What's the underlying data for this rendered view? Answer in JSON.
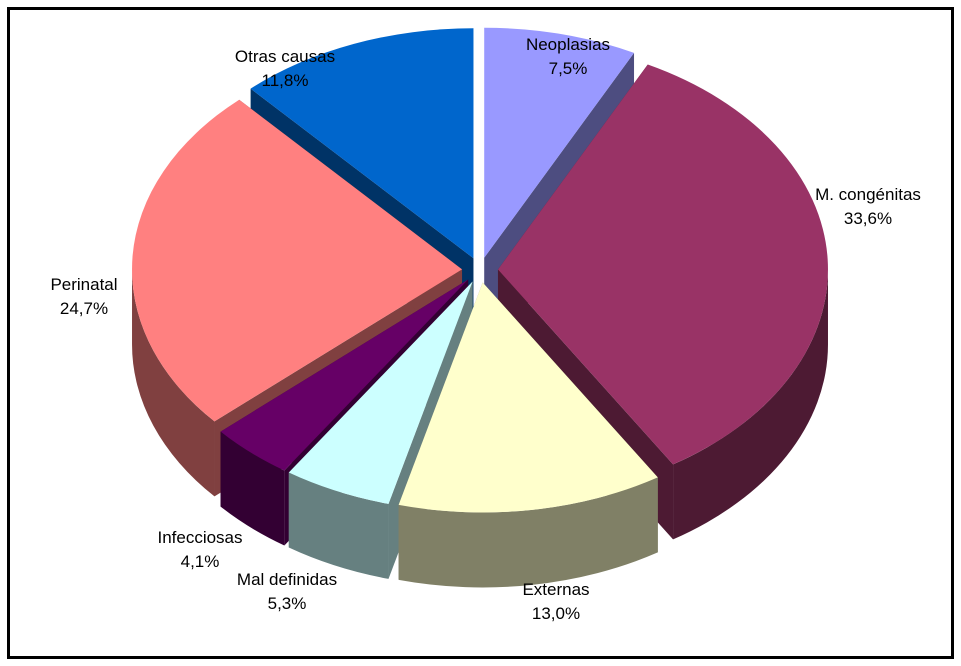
{
  "chart_data": {
    "type": "pie",
    "style": "3d-exploded",
    "title": "",
    "slices": [
      {
        "label": "Neoplasias",
        "value": 7.5,
        "display": "7,5%",
        "top_color": "#9999FF",
        "side_color": "#4D4D80"
      },
      {
        "label": "M. congénitas",
        "value": 33.6,
        "display": "33,6%",
        "top_color": "#993366",
        "side_color": "#4D1A33"
      },
      {
        "label": "Externas",
        "value": 13.0,
        "display": "13,0%",
        "top_color": "#FFFFCC",
        "side_color": "#808066"
      },
      {
        "label": "Mal definidas",
        "value": 5.3,
        "display": "5,3%",
        "top_color": "#CCFFFF",
        "side_color": "#668080"
      },
      {
        "label": "Infecciosas",
        "value": 4.1,
        "display": "4,1%",
        "top_color": "#660066",
        "side_color": "#330033"
      },
      {
        "label": "Perinatal",
        "value": 24.7,
        "display": "24,7%",
        "top_color": "#FF8080",
        "side_color": "#804040"
      },
      {
        "label": "Otras causas",
        "value": 11.8,
        "display": "11,8%",
        "top_color": "#0066CC",
        "side_color": "#003366"
      }
    ]
  }
}
